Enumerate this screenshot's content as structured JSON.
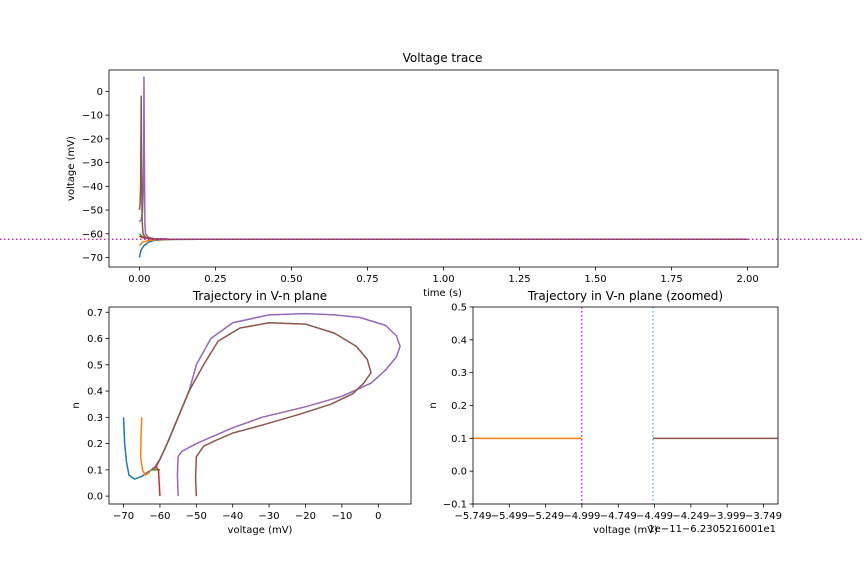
{
  "colors": {
    "c0": "#1f77b4",
    "c1": "#ff7f0e",
    "c2": "#2ca02c",
    "c3": "#d62728",
    "c4": "#9467bd",
    "c5": "#8c564b",
    "rest_line": "#bf00bf",
    "cyan_line": "#17becf"
  },
  "chart_data": [
    {
      "type": "line",
      "title": "Voltage trace",
      "xlabel": "time (s)",
      "ylabel": "voltage (mV)",
      "xlim": [
        -0.1,
        2.1
      ],
      "ylim": [
        -74,
        9
      ],
      "xticks": [
        0.0,
        0.25,
        0.5,
        0.75,
        1.0,
        1.25,
        1.5,
        1.75,
        2.0
      ],
      "xtick_labels": [
        "0.00",
        "0.25",
        "0.50",
        "0.75",
        "1.00",
        "1.25",
        "1.50",
        "1.75",
        "2.00"
      ],
      "yticks": [
        0,
        -10,
        -20,
        -30,
        -40,
        -50,
        -60,
        -70
      ],
      "ytick_labels": [
        "0",
        "−10",
        "−20",
        "−30",
        "−40",
        "−50",
        "−60",
        "−70"
      ],
      "hline": -62.3,
      "series": [
        {
          "color": "c0",
          "x": [
            0,
            0.005,
            0.015,
            0.03,
            0.05,
            0.08,
            0.12,
            0.2,
            0.5,
            2.0
          ],
          "y": [
            -70,
            -67,
            -65,
            -63.5,
            -62.8,
            -62.5,
            -62.35,
            -62.3,
            -62.3,
            -62.3
          ]
        },
        {
          "color": "c1",
          "x": [
            0,
            0.01,
            0.03,
            0.06,
            0.1,
            0.2,
            2.0
          ],
          "y": [
            -65,
            -63.5,
            -62.8,
            -62.5,
            -62.35,
            -62.3,
            -62.3
          ]
        },
        {
          "color": "c2",
          "x": [
            0,
            0.01,
            0.03,
            0.06,
            0.1,
            0.2,
            2.0
          ],
          "y": [
            -60,
            -61.2,
            -61.9,
            -62.2,
            -62.3,
            -62.3,
            -62.3
          ]
        },
        {
          "color": "c3",
          "x": [
            0,
            0.01,
            0.03,
            0.06,
            0.1,
            0.2,
            2.0
          ],
          "y": [
            -61,
            -61.6,
            -62.0,
            -62.2,
            -62.3,
            -62.3,
            -62.3
          ]
        },
        {
          "color": "c4",
          "x": [
            0,
            0.006,
            0.01,
            0.012,
            0.014,
            0.015,
            0.016,
            0.018,
            0.02,
            0.03,
            0.05,
            0.1,
            2.0
          ],
          "y": [
            -55,
            -54,
            -51,
            -45,
            -25,
            6,
            -20,
            -55,
            -60,
            -61.5,
            -62.1,
            -62.3,
            -62.3
          ]
        },
        {
          "color": "c5",
          "x": [
            0,
            0.002,
            0.004,
            0.005,
            0.006,
            0.007,
            0.009,
            0.012,
            0.02,
            0.04,
            0.1,
            2.0
          ],
          "y": [
            -50,
            -48,
            -40,
            -20,
            -2,
            -30,
            -55,
            -60,
            -61.5,
            -62.1,
            -62.3,
            -62.3
          ]
        }
      ]
    },
    {
      "type": "line",
      "title": "Trajectory in V-n plane",
      "xlabel": "voltage (mV)",
      "ylabel": "n",
      "xlim": [
        -74,
        9
      ],
      "ylim": [
        -0.03,
        0.72
      ],
      "xticks": [
        -70,
        -60,
        -50,
        -40,
        -30,
        -20,
        -10,
        0
      ],
      "xtick_labels": [
        "−70",
        "−60",
        "−50",
        "−40",
        "−30",
        "−20",
        "−10",
        "0"
      ],
      "yticks": [
        0.0,
        0.1,
        0.2,
        0.3,
        0.4,
        0.5,
        0.6,
        0.7
      ],
      "ytick_labels": [
        "0.0",
        "0.1",
        "0.2",
        "0.3",
        "0.4",
        "0.5",
        "0.6",
        "0.7"
      ],
      "series": [
        {
          "color": "c0",
          "x": [
            -70,
            -69.7,
            -69.2,
            -68.5,
            -67,
            -65,
            -63.5,
            -62.3
          ],
          "y": [
            0.3,
            0.2,
            0.13,
            0.08,
            0.065,
            0.075,
            0.09,
            0.1
          ]
        },
        {
          "color": "c1",
          "x": [
            -65,
            -65.2,
            -65.3,
            -64.8,
            -64,
            -63,
            -62.3
          ],
          "y": [
            0.3,
            0.22,
            0.15,
            0.1,
            0.08,
            0.09,
            0.1
          ]
        },
        {
          "color": "c2",
          "x": [
            -60,
            -61,
            -61.8,
            -62.3
          ],
          "y": [
            0.1,
            0.1,
            0.1,
            0.1
          ]
        },
        {
          "color": "c3",
          "x": [
            -60,
            -60.2,
            -60.4,
            -61,
            -62,
            -62.3
          ],
          "y": [
            0.0,
            0.05,
            0.1,
            0.11,
            0.105,
            0.1
          ]
        },
        {
          "color": "c4",
          "x": [
            -55,
            -55.2,
            -55,
            -54,
            -50,
            -45,
            -40,
            -32,
            -20,
            -10,
            -2,
            2,
            5,
            6,
            5,
            2,
            -5,
            -12,
            -20,
            -30,
            -40,
            -46,
            -50,
            -52,
            -55,
            -58,
            -60,
            -61.5,
            -62.3
          ],
          "y": [
            0,
            0.08,
            0.15,
            0.17,
            0.2,
            0.23,
            0.26,
            0.3,
            0.34,
            0.38,
            0.43,
            0.48,
            0.53,
            0.57,
            0.61,
            0.65,
            0.68,
            0.69,
            0.695,
            0.69,
            0.66,
            0.6,
            0.5,
            0.4,
            0.3,
            0.2,
            0.14,
            0.11,
            0.1
          ]
        },
        {
          "color": "c5",
          "x": [
            -50,
            -50.2,
            -50,
            -48,
            -45,
            -40,
            -32,
            -22,
            -13,
            -7,
            -4,
            -2,
            -3,
            -6,
            -12,
            -20,
            -30,
            -38,
            -44,
            -48,
            -52,
            -55,
            -58,
            -60,
            -61,
            -62.3
          ],
          "y": [
            0,
            0.07,
            0.15,
            0.19,
            0.21,
            0.24,
            0.27,
            0.31,
            0.35,
            0.39,
            0.43,
            0.47,
            0.52,
            0.57,
            0.62,
            0.655,
            0.66,
            0.64,
            0.59,
            0.5,
            0.4,
            0.3,
            0.2,
            0.14,
            0.11,
            0.1
          ]
        }
      ]
    },
    {
      "type": "line",
      "title": "Trajectory in V-n plane (zoomed)",
      "xlabel": "voltage (mV)",
      "ylabel": "n",
      "offset_text": "1e−11−6.2305216001e1",
      "xlim": [
        -5.749,
        -3.649
      ],
      "ylim": [
        -0.1,
        0.5
      ],
      "xticks": [
        -5.749,
        -5.499,
        -5.249,
        -4.999,
        -4.749,
        -4.499,
        -4.249,
        -3.999,
        -3.749
      ],
      "xtick_labels": [
        "−5.749",
        "−5.499",
        "−5.249",
        "−4.999",
        "−4.749",
        "−4.499",
        "−4.249",
        "−3.999",
        "−3.749"
      ],
      "yticks": [
        -0.1,
        0.0,
        0.1,
        0.2,
        0.3,
        0.4,
        0.5
      ],
      "ytick_labels": [
        "−0.1",
        "0.0",
        "0.1",
        "0.2",
        "0.3",
        "0.4",
        "0.5"
      ],
      "vlines": [
        {
          "x": -5.0,
          "color": "rest_line"
        },
        {
          "x": -4.51,
          "color": "cyan_line"
        }
      ],
      "series": [
        {
          "color": "c1",
          "x": [
            -5.749,
            -5.0
          ],
          "y": [
            0.1,
            0.1
          ]
        },
        {
          "color": "c5",
          "x": [
            -4.51,
            -3.649
          ],
          "y": [
            0.1,
            0.1
          ]
        }
      ]
    }
  ]
}
